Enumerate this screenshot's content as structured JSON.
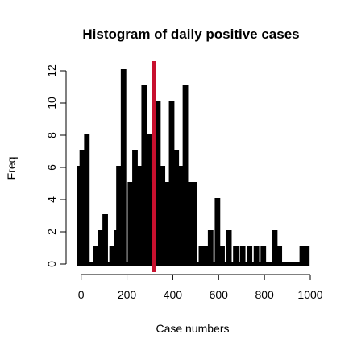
{
  "chart_data": {
    "type": "bar",
    "title": "Histogram of daily positive cases",
    "xlabel": "Case numbers",
    "ylabel": "Freq",
    "bin_width": 10,
    "xlim": [
      -20,
      1000
    ],
    "ylim": [
      0,
      12
    ],
    "x_ticks": [
      0,
      200,
      400,
      600,
      800,
      1000
    ],
    "y_ticks": [
      0,
      2,
      4,
      6,
      8,
      10,
      12
    ],
    "bins": [
      {
        "start": -10,
        "count": 6
      },
      {
        "start": 0,
        "count": 7
      },
      {
        "start": 20,
        "count": 8
      },
      {
        "start": 30,
        "count": 0
      },
      {
        "start": 60,
        "count": 1
      },
      {
        "start": 80,
        "count": 2
      },
      {
        "start": 100,
        "count": 3
      },
      {
        "start": 130,
        "count": 1
      },
      {
        "start": 150,
        "count": 2
      },
      {
        "start": 160,
        "count": 6
      },
      {
        "start": 180,
        "count": 12
      },
      {
        "start": 210,
        "count": 5
      },
      {
        "start": 230,
        "count": 7
      },
      {
        "start": 250,
        "count": 6
      },
      {
        "start": 270,
        "count": 11
      },
      {
        "start": 290,
        "count": 8
      },
      {
        "start": 310,
        "count": 5
      },
      {
        "start": 330,
        "count": 10
      },
      {
        "start": 350,
        "count": 6
      },
      {
        "start": 370,
        "count": 5
      },
      {
        "start": 390,
        "count": 10
      },
      {
        "start": 410,
        "count": 7
      },
      {
        "start": 430,
        "count": 6
      },
      {
        "start": 450,
        "count": 11
      },
      {
        "start": 470,
        "count": 5
      },
      {
        "start": 490,
        "count": 5
      },
      {
        "start": 520,
        "count": 1
      },
      {
        "start": 540,
        "count": 1
      },
      {
        "start": 560,
        "count": 2
      },
      {
        "start": 590,
        "count": 4
      },
      {
        "start": 610,
        "count": 1
      },
      {
        "start": 640,
        "count": 2
      },
      {
        "start": 670,
        "count": 1
      },
      {
        "start": 700,
        "count": 1
      },
      {
        "start": 730,
        "count": 1
      },
      {
        "start": 760,
        "count": 1
      },
      {
        "start": 790,
        "count": 1
      },
      {
        "start": 840,
        "count": 2
      },
      {
        "start": 860,
        "count": 1
      },
      {
        "start": 960,
        "count": 1
      },
      {
        "start": 980,
        "count": 1
      }
    ],
    "reference_line": {
      "x": 318,
      "color": "#c8102e"
    },
    "bar_fill": "#ffffff",
    "bar_stroke": "#000000",
    "grid": false
  }
}
